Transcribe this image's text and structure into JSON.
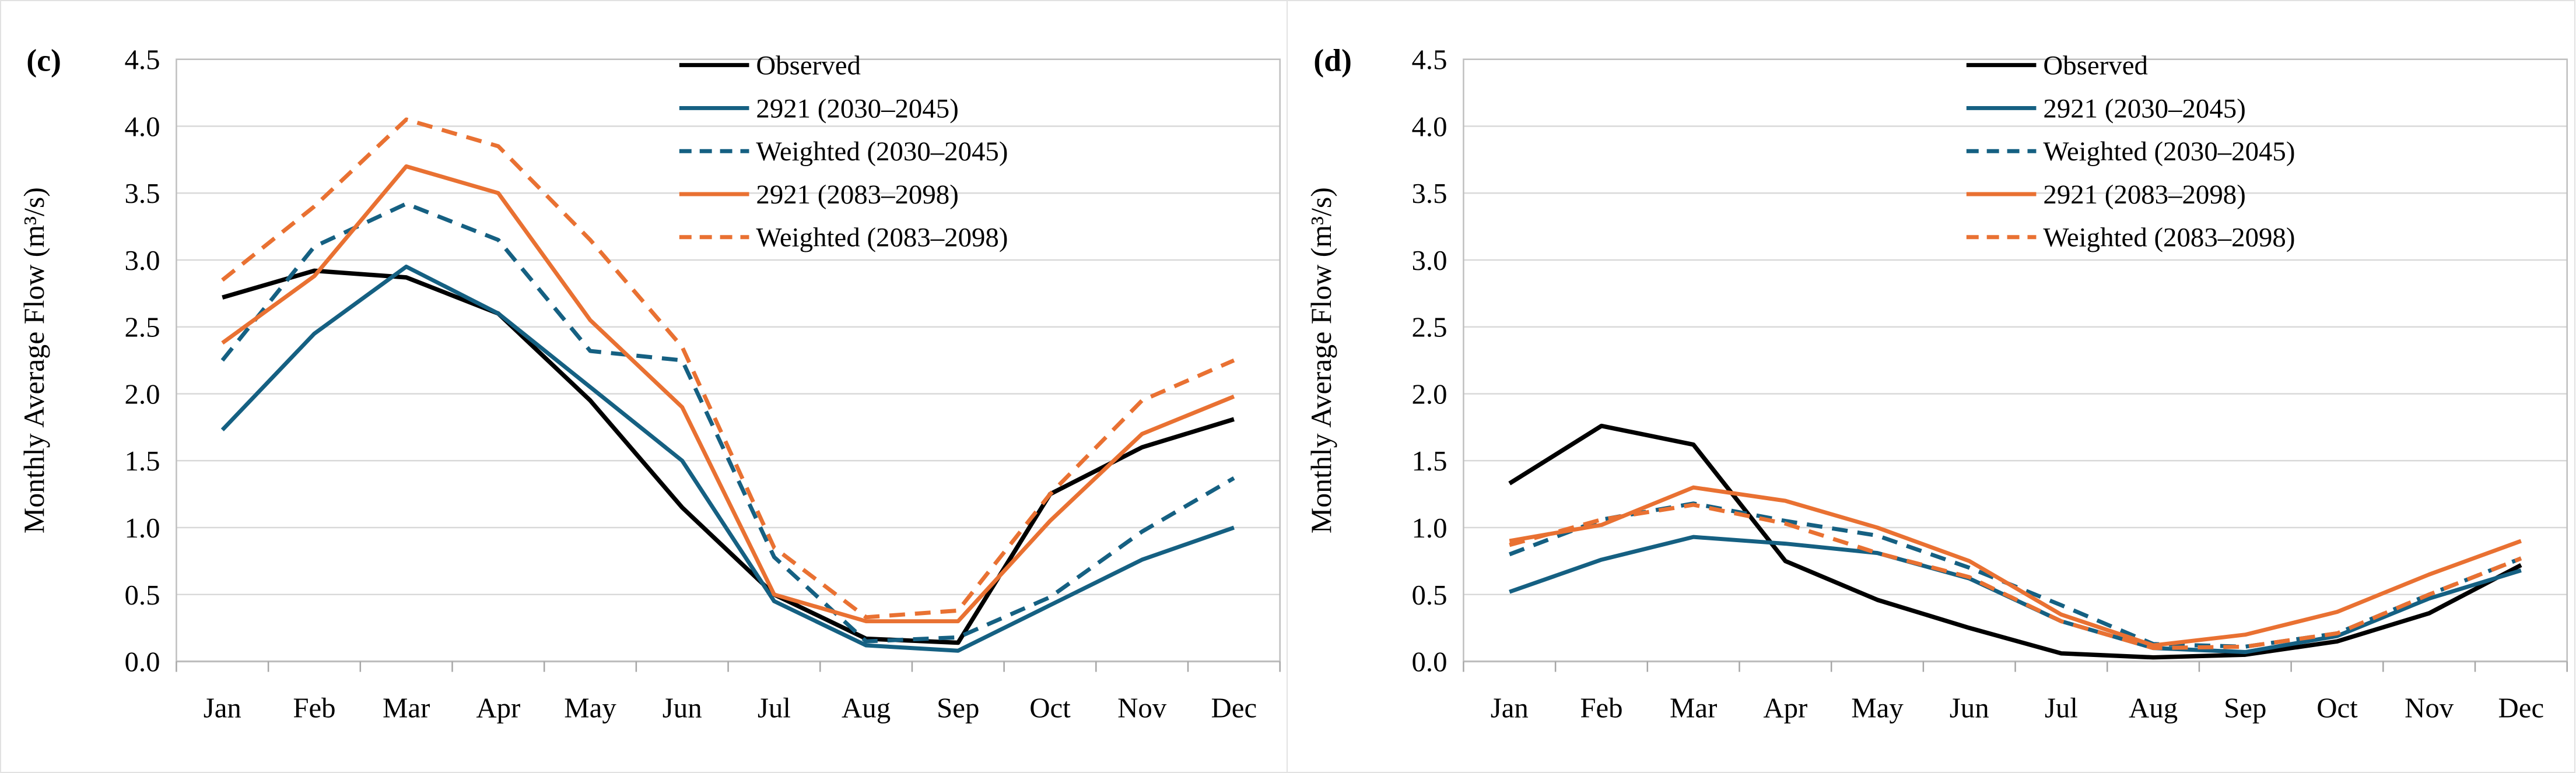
{
  "figure": {
    "background": "#ffffff",
    "grid_color": "#d9d9d9",
    "border_color": "#bfbfbf",
    "axis_color": "#a6a6a6",
    "text_color": "#000000"
  },
  "chart_data": [
    {
      "type": "line",
      "panel_label": "(c)",
      "ylabel": "Monthly Average Flow (m³/s)",
      "xlabel": "",
      "ylim": [
        0,
        4.5
      ],
      "ytick_labels": [
        "4.5",
        "4.0",
        "3.5",
        "3.0",
        "2.5",
        "2.0",
        "1.5",
        "1.0",
        "0.5",
        "0.0"
      ],
      "grid": true,
      "legend_position": "top-right",
      "categories": [
        "Jan",
        "Feb",
        "Mar",
        "Apr",
        "May",
        "Jun",
        "Jul",
        "Aug",
        "Sep",
        "Oct",
        "Nov",
        "Dec"
      ],
      "series": [
        {
          "name": "Observed",
          "color": "#000000",
          "dashed": false,
          "values": [
            2.72,
            2.92,
            2.87,
            2.6,
            1.95,
            1.15,
            0.5,
            0.17,
            0.14,
            1.25,
            1.6,
            1.81
          ]
        },
        {
          "name": "2921 (2030–2045)",
          "color": "#156082",
          "dashed": false,
          "values": [
            1.73,
            2.45,
            2.95,
            2.6,
            2.05,
            1.5,
            0.45,
            0.12,
            0.08,
            0.42,
            0.76,
            1.0
          ]
        },
        {
          "name": "Weighted (2030–2045)",
          "color": "#156082",
          "dashed": true,
          "values": [
            2.25,
            3.1,
            3.42,
            3.15,
            2.32,
            2.25,
            0.78,
            0.15,
            0.18,
            0.48,
            0.97,
            1.37
          ]
        },
        {
          "name": "2921 (2083–2098)",
          "color": "#e97132",
          "dashed": false,
          "values": [
            2.38,
            2.88,
            3.7,
            3.5,
            2.55,
            1.9,
            0.5,
            0.3,
            0.3,
            1.05,
            1.7,
            1.98
          ]
        },
        {
          "name": "Weighted (2083–2098)",
          "color": "#e97132",
          "dashed": true,
          "values": [
            2.85,
            3.4,
            4.05,
            3.85,
            3.15,
            2.35,
            0.85,
            0.33,
            0.38,
            1.25,
            1.95,
            2.25
          ]
        }
      ]
    },
    {
      "type": "line",
      "panel_label": "(d)",
      "ylabel": "Monthly Average Flow (m³/s)",
      "xlabel": "",
      "ylim": [
        0,
        4.5
      ],
      "ytick_labels": [
        "4.5",
        "4.0",
        "3.5",
        "3.0",
        "2.5",
        "2.0",
        "1.5",
        "1.0",
        "0.5",
        "0.0"
      ],
      "grid": true,
      "legend_position": "top-right",
      "categories": [
        "Jan",
        "Feb",
        "Mar",
        "Apr",
        "May",
        "Jun",
        "Jul",
        "Aug",
        "Sep",
        "Oct",
        "Nov",
        "Dec"
      ],
      "series": [
        {
          "name": "Observed",
          "color": "#000000",
          "dashed": false,
          "values": [
            1.33,
            1.76,
            1.62,
            0.75,
            0.46,
            0.25,
            0.06,
            0.03,
            0.05,
            0.15,
            0.36,
            0.72
          ]
        },
        {
          "name": "2921 (2030–2045)",
          "color": "#156082",
          "dashed": false,
          "values": [
            0.52,
            0.76,
            0.93,
            0.88,
            0.81,
            0.62,
            0.3,
            0.1,
            0.07,
            0.19,
            0.47,
            0.68
          ]
        },
        {
          "name": "Weighted (2030–2045)",
          "color": "#156082",
          "dashed": true,
          "values": [
            0.8,
            1.06,
            1.18,
            1.05,
            0.94,
            0.7,
            0.42,
            0.13,
            0.11,
            0.21,
            0.5,
            0.77
          ]
        },
        {
          "name": "2921 (2083–2098)",
          "color": "#e97132",
          "dashed": false,
          "values": [
            0.9,
            1.02,
            1.3,
            1.2,
            1.0,
            0.75,
            0.35,
            0.12,
            0.2,
            0.37,
            0.65,
            0.9
          ]
        },
        {
          "name": "Weighted (2083–2098)",
          "color": "#e97132",
          "dashed": true,
          "values": [
            0.87,
            1.06,
            1.17,
            1.03,
            0.81,
            0.63,
            0.3,
            0.1,
            0.11,
            0.21,
            0.5,
            0.77
          ]
        }
      ]
    }
  ]
}
